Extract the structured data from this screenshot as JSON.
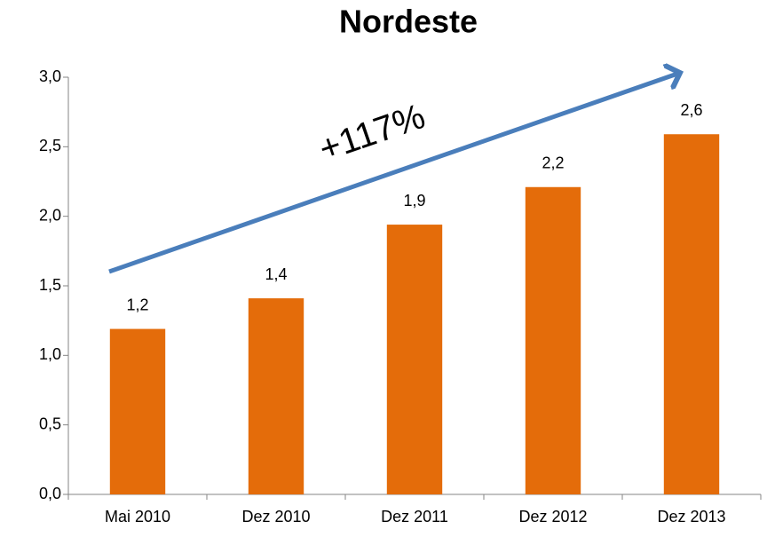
{
  "chart_data": {
    "type": "bar",
    "title": "Nordeste",
    "categories": [
      "Mai 2010",
      "Dez 2010",
      "Dez 2011",
      "Dez 2012",
      "Dez 2013"
    ],
    "values": [
      1.19,
      1.41,
      1.94,
      2.21,
      2.59
    ],
    "value_labels": [
      "1,2",
      "1,4",
      "1,9",
      "2,2",
      "2,6"
    ],
    "color": "#e46c0a",
    "annotation": "+117%",
    "ylim": [
      0,
      3
    ],
    "yticks": [
      {
        "value": 0,
        "label": "0,0"
      },
      {
        "value": 0.5,
        "label": "0,5"
      },
      {
        "value": 1,
        "label": "1,0"
      },
      {
        "value": 1.5,
        "label": "1,5"
      },
      {
        "value": 2,
        "label": "2,0"
      },
      {
        "value": 2.5,
        "label": "2,5"
      },
      {
        "value": 3,
        "label": "3,0"
      }
    ],
    "grid": false
  }
}
